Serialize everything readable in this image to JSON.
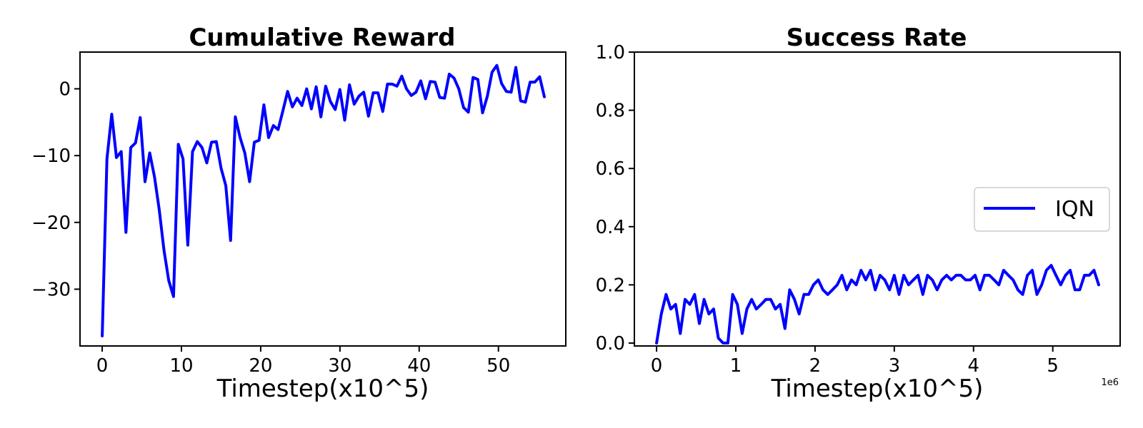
{
  "colors": {
    "series": "#0000ff",
    "axes": "#000000",
    "legend_border": "#cccccc"
  },
  "chart_data": [
    {
      "type": "line",
      "title": "Cumulative Reward",
      "xlabel": "Timestep(x10^5)",
      "ylabel": "",
      "xlim": [
        -2.8,
        58.5
      ],
      "ylim": [
        -38.5,
        5.5
      ],
      "xticks": [
        0,
        10,
        20,
        30,
        40,
        50
      ],
      "xtick_labels": [
        "0",
        "10",
        "20",
        "30",
        "40",
        "50"
      ],
      "yticks": [
        0,
        -10,
        -20,
        -30
      ],
      "ytick_labels": [
        "0",
        "−10",
        "−20",
        "−30"
      ],
      "grid": false,
      "series": [
        {
          "color": "#0000ff",
          "x": [
            0,
            0.6,
            1.2,
            1.8,
            2.4,
            3.0,
            3.6,
            4.2,
            4.8,
            5.4,
            6.0,
            6.6,
            7.2,
            7.8,
            8.4,
            9.0,
            9.6,
            10.2,
            10.8,
            11.4,
            12.0,
            12.6,
            13.2,
            13.8,
            14.4,
            15.0,
            15.6,
            16.2,
            16.8,
            17.4,
            18.0,
            18.6,
            19.2,
            19.8,
            20.4,
            21.0,
            21.6,
            22.2,
            22.8,
            23.4,
            24.0,
            24.6,
            25.2,
            25.8,
            26.4,
            27.0,
            27.6,
            28.2,
            28.8,
            29.4,
            30.0,
            30.6,
            31.2,
            31.8,
            32.4,
            33.0,
            33.6,
            34.2,
            34.8,
            35.4,
            36.0,
            36.6,
            37.2,
            37.8,
            38.4,
            39.0,
            39.6,
            40.2,
            40.8,
            41.4,
            42.0,
            42.6,
            43.2,
            43.8,
            44.4,
            45.0,
            45.6,
            46.2,
            46.8,
            47.4,
            48.0,
            48.6,
            49.2,
            49.8,
            50.4,
            51.0,
            51.6,
            52.2,
            52.8,
            53.4,
            54.0,
            54.6,
            55.2,
            55.8
          ],
          "y": [
            -37,
            -10.5,
            -3.8,
            -10.3,
            -9.4,
            -21.5,
            -8.8,
            -8.1,
            -4.3,
            -13.9,
            -9.6,
            -13.2,
            -18.1,
            -24.2,
            -28.7,
            -31.1,
            -8.3,
            -10.5,
            -23.4,
            -9.4,
            -7.9,
            -8.8,
            -11.1,
            -8.0,
            -7.9,
            -11.9,
            -14.5,
            -22.7,
            -4.2,
            -7.3,
            -9.6,
            -13.9,
            -8.0,
            -7.7,
            -2.4,
            -7.3,
            -5.5,
            -6.1,
            -3.3,
            -0.4,
            -2.7,
            -1.4,
            -2.5,
            0.0,
            -3.0,
            0.3,
            -4.2,
            0.4,
            -1.9,
            -3.1,
            -0.1,
            -4.7,
            0.6,
            -2.3,
            -1.1,
            -0.5,
            -4.1,
            -0.6,
            -0.6,
            -3.4,
            0.7,
            0.7,
            0.4,
            1.9,
            0.0,
            -1.0,
            -0.5,
            1.2,
            -1.5,
            1.1,
            1.0,
            -1.3,
            -1.4,
            2.2,
            1.6,
            0.0,
            -2.8,
            -3.5,
            1.7,
            1.4,
            -3.6,
            -1.1,
            2.5,
            3.5,
            0.8,
            -0.4,
            -0.5,
            3.2,
            -1.8,
            -2.0,
            1.0,
            1.0,
            1.8,
            -1.2
          ]
        }
      ]
    },
    {
      "type": "line",
      "title": "Success Rate",
      "xlabel": "Timestep(x10^5)",
      "ylabel": "",
      "x_offset_text": "1e6",
      "xlim": [
        -0.28,
        5.85
      ],
      "ylim": [
        -0.01,
        1.0
      ],
      "xticks": [
        0,
        1,
        2,
        3,
        4,
        5
      ],
      "xtick_labels": [
        "0",
        "1",
        "2",
        "3",
        "4",
        "5"
      ],
      "yticks": [
        0.0,
        0.2,
        0.4,
        0.6,
        0.8,
        1.0
      ],
      "ytick_labels": [
        "0.0",
        "0.2",
        "0.4",
        "0.6",
        "0.8",
        "1.0"
      ],
      "grid": false,
      "legend": {
        "placement": "center-right",
        "entries": [
          "IQN"
        ]
      },
      "series": [
        {
          "name": "IQN",
          "color": "#0000ff",
          "x": [
            0,
            0.06,
            0.12,
            0.18,
            0.24,
            0.3,
            0.36,
            0.42,
            0.48,
            0.54,
            0.6,
            0.66,
            0.72,
            0.78,
            0.84,
            0.9,
            0.96,
            1.02,
            1.08,
            1.14,
            1.2,
            1.26,
            1.32,
            1.38,
            1.44,
            1.5,
            1.56,
            1.62,
            1.68,
            1.74,
            1.8,
            1.86,
            1.92,
            1.98,
            2.04,
            2.1,
            2.16,
            2.22,
            2.28,
            2.34,
            2.4,
            2.46,
            2.52,
            2.58,
            2.64,
            2.7,
            2.76,
            2.82,
            2.88,
            2.94,
            3.0,
            3.06,
            3.12,
            3.18,
            3.24,
            3.3,
            3.36,
            3.42,
            3.48,
            3.54,
            3.6,
            3.66,
            3.72,
            3.78,
            3.84,
            3.9,
            3.96,
            4.02,
            4.08,
            4.14,
            4.2,
            4.26,
            4.32,
            4.38,
            4.44,
            4.5,
            4.56,
            4.62,
            4.68,
            4.74,
            4.8,
            4.86,
            4.92,
            4.98,
            5.04,
            5.1,
            5.16,
            5.22,
            5.28,
            5.34,
            5.4,
            5.46,
            5.52,
            5.58
          ],
          "y": [
            0.0,
            0.1,
            0.167,
            0.117,
            0.133,
            0.033,
            0.15,
            0.133,
            0.167,
            0.067,
            0.15,
            0.1,
            0.117,
            0.017,
            0.0,
            0.0,
            0.167,
            0.133,
            0.033,
            0.117,
            0.15,
            0.117,
            0.133,
            0.15,
            0.15,
            0.117,
            0.133,
            0.05,
            0.183,
            0.15,
            0.1,
            0.167,
            0.167,
            0.2,
            0.217,
            0.183,
            0.167,
            0.183,
            0.2,
            0.233,
            0.183,
            0.217,
            0.2,
            0.25,
            0.217,
            0.25,
            0.183,
            0.233,
            0.217,
            0.183,
            0.233,
            0.167,
            0.233,
            0.2,
            0.217,
            0.233,
            0.167,
            0.233,
            0.217,
            0.183,
            0.217,
            0.233,
            0.217,
            0.233,
            0.233,
            0.217,
            0.217,
            0.233,
            0.183,
            0.233,
            0.233,
            0.217,
            0.2,
            0.25,
            0.233,
            0.217,
            0.183,
            0.167,
            0.233,
            0.25,
            0.167,
            0.2,
            0.25,
            0.267,
            0.233,
            0.2,
            0.233,
            0.25,
            0.183,
            0.183,
            0.233,
            0.233,
            0.25,
            0.2
          ]
        }
      ]
    }
  ]
}
